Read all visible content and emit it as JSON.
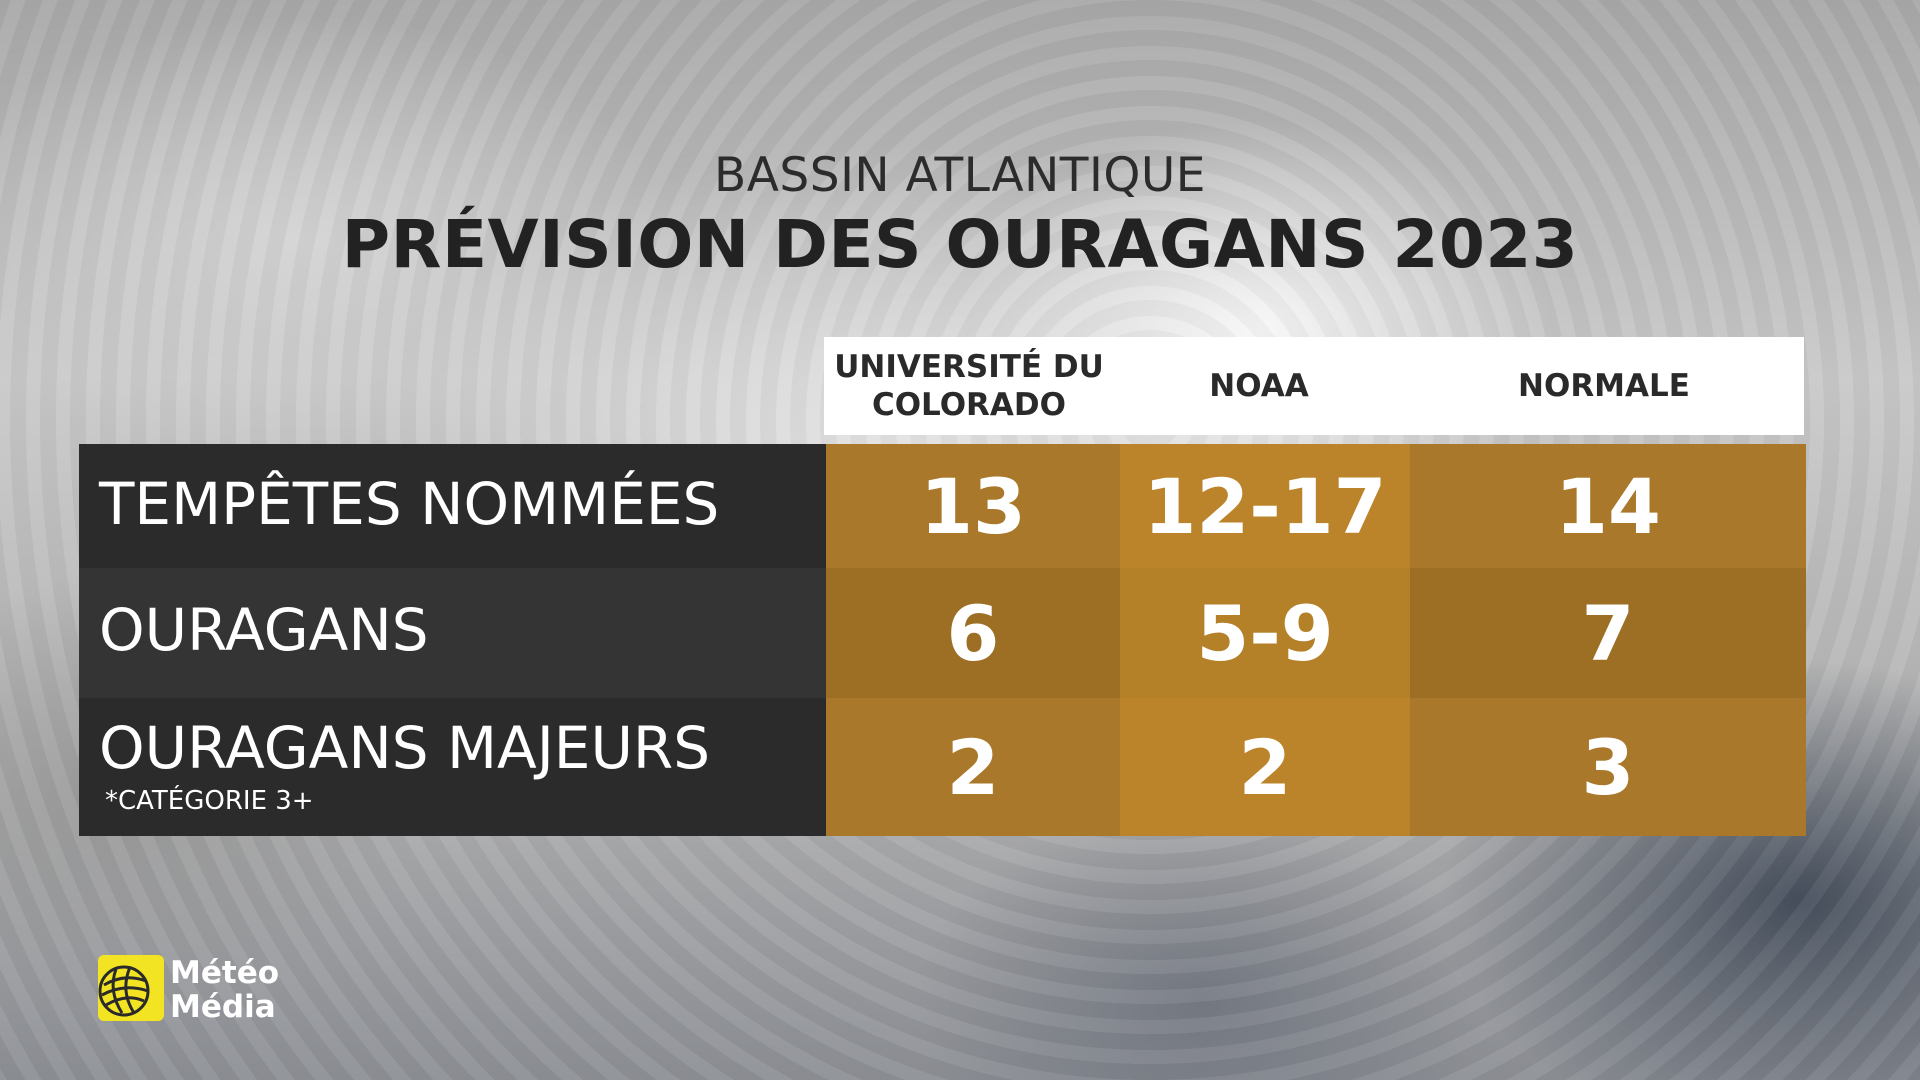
{
  "header": {
    "subtitle": "BASSIN ATLANTIQUE",
    "title": "PRÉVISION DES OURAGANS 2023"
  },
  "columns": [
    {
      "label_line1": "UNIVERSITÉ DU",
      "label_line2": "COLORADO"
    },
    {
      "label_line1": "NOAA",
      "label_line2": ""
    },
    {
      "label_line1": "NORMALE",
      "label_line2": ""
    }
  ],
  "rows": [
    {
      "label": "TEMPÊTES NOMMÉES",
      "note": "",
      "values": [
        "13",
        "12-17",
        "14"
      ]
    },
    {
      "label": "OURAGANS",
      "note": "",
      "values": [
        "6",
        "5-9",
        "7"
      ]
    },
    {
      "label": "OURAGANS MAJEURS",
      "note": "*CATÉGORIE 3+",
      "values": [
        "2",
        "2",
        "3"
      ]
    }
  ],
  "logo": {
    "line1": "Météo",
    "line2": "Média",
    "icon": "globe-icon"
  },
  "colors": {
    "label_dark_1": "#2b2b2b",
    "label_dark_2": "#353535",
    "cell_light": "#b98327",
    "cell_dark": "#9c6d23",
    "brand_yellow": "#f2e423"
  }
}
